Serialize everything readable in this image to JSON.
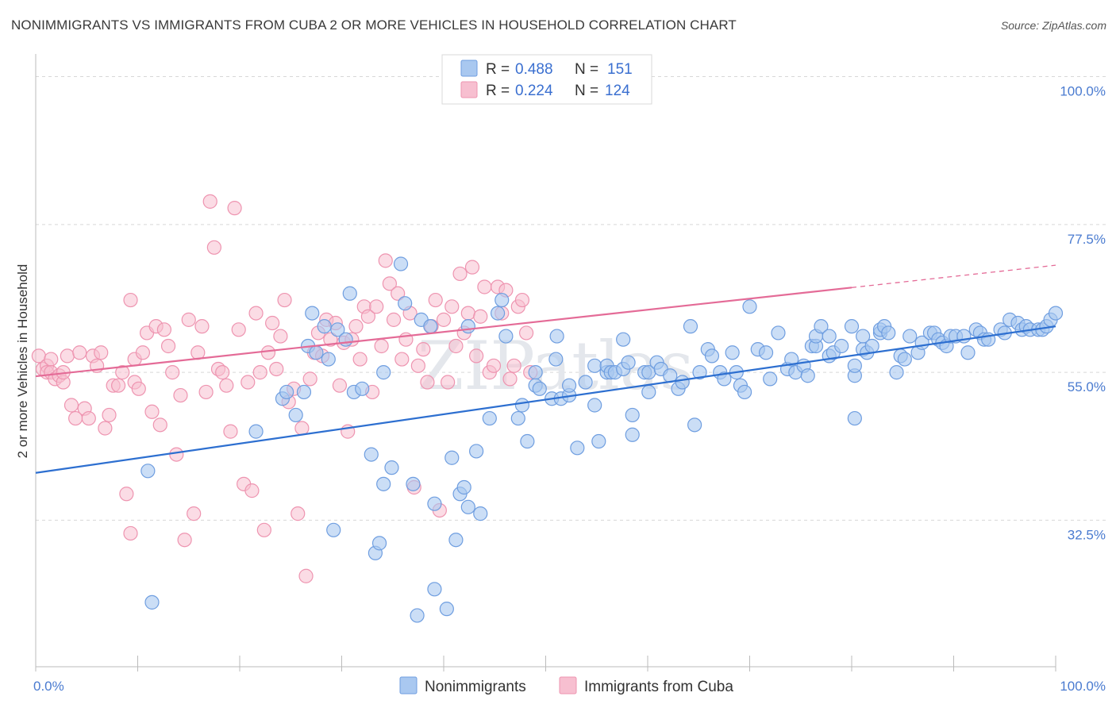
{
  "header": {
    "title": "NONIMMIGRANTS VS IMMIGRANTS FROM CUBA 2 OR MORE VEHICLES IN HOUSEHOLD CORRELATION CHART",
    "source": "Source: ZipAtlas.com"
  },
  "watermark": "ZIPatlas",
  "colors": {
    "blue_fill": "#a9c8f0",
    "blue_stroke": "#6f9ee0",
    "blue_line": "#2d6fd0",
    "pink_fill": "#f7bfd0",
    "pink_stroke": "#ee94b0",
    "pink_line": "#e46b97",
    "tick_text": "#4a7bd0",
    "grid": "#d8d8d8"
  },
  "legend": {
    "rows": [
      {
        "r_label": "R =",
        "r_value": "0.488",
        "n_label": "N =",
        "n_value": "151"
      },
      {
        "r_label": "R =",
        "r_value": "0.224",
        "n_label": "N =",
        "n_value": "124"
      }
    ]
  },
  "bottom_legend": {
    "items": [
      "Nonimmigrants",
      "Immigrants from Cuba"
    ]
  },
  "chart_data": {
    "type": "scatter",
    "title": "NONIMMIGRANTS VS IMMIGRANTS FROM CUBA 2 OR MORE VEHICLES IN HOUSEHOLD CORRELATION CHART",
    "xlabel": "",
    "ylabel": "2 or more Vehicles in Household",
    "x_ticks": [
      "0.0%",
      "100.0%"
    ],
    "y_ticks": [
      "32.5%",
      "55.0%",
      "77.5%",
      "100.0%"
    ],
    "y_tick_values": [
      32.5,
      55.0,
      77.5,
      100.0
    ],
    "xlim": [
      0,
      100
    ],
    "ylim": [
      10.2,
      102
    ],
    "grid": "horizontal dashed",
    "legend_position": "top-center",
    "series": [
      {
        "name": "Nonimmigrants",
        "r": 0.488,
        "n": 151,
        "trend": {
          "x": [
            0,
            100
          ],
          "y": [
            39.7,
            62.0
          ]
        },
        "points": [
          [
            11,
            40
          ],
          [
            11.4,
            20
          ],
          [
            21.6,
            46
          ],
          [
            24.2,
            51
          ],
          [
            24.6,
            52
          ],
          [
            25.5,
            48.5
          ],
          [
            26.3,
            52
          ],
          [
            26.7,
            59
          ],
          [
            27.1,
            64
          ],
          [
            27.5,
            58
          ],
          [
            28.3,
            62
          ],
          [
            28.7,
            57
          ],
          [
            29.2,
            31
          ],
          [
            29.6,
            61.5
          ],
          [
            30.4,
            60
          ],
          [
            30.8,
            67
          ],
          [
            31.2,
            52
          ],
          [
            32,
            52.5
          ],
          [
            32.9,
            42.5
          ],
          [
            33.3,
            27.5
          ],
          [
            33.7,
            29
          ],
          [
            34.1,
            38
          ],
          [
            34.1,
            55
          ],
          [
            34.9,
            40.5
          ],
          [
            35.8,
            71.5
          ],
          [
            36.2,
            65.5
          ],
          [
            37,
            38
          ],
          [
            37.4,
            18
          ],
          [
            37.8,
            63
          ],
          [
            38.7,
            62
          ],
          [
            39.1,
            22
          ],
          [
            39.1,
            35
          ],
          [
            40.3,
            19
          ],
          [
            40.8,
            42
          ],
          [
            41.2,
            29.5
          ],
          [
            41.6,
            36.5
          ],
          [
            42,
            37.5
          ],
          [
            42.4,
            62
          ],
          [
            42.4,
            34.5
          ],
          [
            43.2,
            43
          ],
          [
            43.6,
            33.5
          ],
          [
            44.5,
            48
          ],
          [
            45.3,
            64
          ],
          [
            45.7,
            66
          ],
          [
            46.1,
            60.5
          ],
          [
            47.3,
            48
          ],
          [
            47.7,
            50
          ],
          [
            48.2,
            44.5
          ],
          [
            49,
            55
          ],
          [
            49,
            53
          ],
          [
            49.4,
            52.5
          ],
          [
            50.6,
            51
          ],
          [
            51.1,
            60.5
          ],
          [
            51,
            57
          ],
          [
            51.5,
            51
          ],
          [
            52.3,
            51.5
          ],
          [
            52.3,
            53
          ],
          [
            53.1,
            43.5
          ],
          [
            53.9,
            53.5
          ],
          [
            54.8,
            56
          ],
          [
            54.8,
            50
          ],
          [
            55.2,
            44.5
          ],
          [
            56,
            55
          ],
          [
            56,
            56
          ],
          [
            56.4,
            55
          ],
          [
            56.8,
            55
          ],
          [
            57.6,
            60
          ],
          [
            57.6,
            55.5
          ],
          [
            58.1,
            56.5
          ],
          [
            58.5,
            45.5
          ],
          [
            58.5,
            48.5
          ],
          [
            59.7,
            55
          ],
          [
            60.1,
            55
          ],
          [
            60.1,
            52
          ],
          [
            60.9,
            56.5
          ],
          [
            61.3,
            55.5
          ],
          [
            62.2,
            54.5
          ],
          [
            63,
            52.5
          ],
          [
            63.4,
            53.5
          ],
          [
            64.2,
            62
          ],
          [
            64.6,
            47
          ],
          [
            65.1,
            55
          ],
          [
            65.9,
            58.5
          ],
          [
            66.3,
            57.5
          ],
          [
            67.1,
            55
          ],
          [
            67.5,
            54
          ],
          [
            68.3,
            58
          ],
          [
            68.7,
            55
          ],
          [
            69.1,
            53
          ],
          [
            69.5,
            52
          ],
          [
            70,
            65
          ],
          [
            70.8,
            58.5
          ],
          [
            71.6,
            58
          ],
          [
            72,
            54
          ],
          [
            72.8,
            61
          ],
          [
            73.7,
            55.5
          ],
          [
            74.1,
            57
          ],
          [
            74.5,
            55
          ],
          [
            75.3,
            56
          ],
          [
            75.7,
            54.5
          ],
          [
            76.1,
            59
          ],
          [
            76.5,
            59
          ],
          [
            76.5,
            60.5
          ],
          [
            77,
            62
          ],
          [
            77.8,
            57.5
          ],
          [
            77.8,
            60.5
          ],
          [
            78.2,
            58
          ],
          [
            79,
            59
          ],
          [
            80,
            62
          ],
          [
            80.3,
            54.5
          ],
          [
            80.3,
            56
          ],
          [
            80.3,
            48
          ],
          [
            81.1,
            58.5
          ],
          [
            81.1,
            60.5
          ],
          [
            81.5,
            58
          ],
          [
            82,
            59
          ],
          [
            82.8,
            61
          ],
          [
            82.8,
            61.5
          ],
          [
            83.2,
            62
          ],
          [
            83.6,
            61
          ],
          [
            84.4,
            55
          ],
          [
            84.8,
            57.5
          ],
          [
            85.2,
            57
          ],
          [
            85.7,
            60.5
          ],
          [
            86.5,
            58
          ],
          [
            86.9,
            59.5
          ],
          [
            87.7,
            61
          ],
          [
            88.1,
            61
          ],
          [
            88.5,
            60
          ],
          [
            88.9,
            59.5
          ],
          [
            89.3,
            59
          ],
          [
            89.7,
            60.5
          ],
          [
            90.2,
            60.5
          ],
          [
            91,
            60.5
          ],
          [
            91.4,
            58
          ],
          [
            92.2,
            61.5
          ],
          [
            92.6,
            61
          ],
          [
            93,
            60
          ],
          [
            93.4,
            60
          ],
          [
            94.6,
            61.5
          ],
          [
            95,
            61
          ],
          [
            95.5,
            63
          ],
          [
            96.3,
            62.5
          ],
          [
            96.7,
            61.5
          ],
          [
            97.1,
            62
          ],
          [
            97.5,
            61.5
          ],
          [
            98.3,
            61.5
          ],
          [
            98.7,
            61.5
          ],
          [
            99.1,
            62
          ],
          [
            99.5,
            63
          ],
          [
            100,
            64
          ]
        ]
      },
      {
        "name": "Immigrants from Cuba",
        "r": 0.224,
        "n": 124,
        "trend": {
          "x": [
            0,
            80
          ],
          "y": [
            54.4,
            67.9
          ]
        },
        "trend_dashed": {
          "x": [
            80,
            100
          ],
          "y": [
            67.9,
            71.3
          ]
        },
        "points": [
          [
            0.3,
            57.5
          ],
          [
            0.7,
            55.5
          ],
          [
            1.1,
            56
          ],
          [
            1.1,
            55
          ],
          [
            1.5,
            57
          ],
          [
            1.5,
            55
          ],
          [
            1.9,
            54
          ],
          [
            2.3,
            54.5
          ],
          [
            2.7,
            53.5
          ],
          [
            2.7,
            55
          ],
          [
            3.1,
            57.5
          ],
          [
            3.5,
            50
          ],
          [
            3.9,
            48
          ],
          [
            4.3,
            58
          ],
          [
            4.8,
            49.5
          ],
          [
            5.2,
            48
          ],
          [
            5.6,
            57.5
          ],
          [
            6,
            56
          ],
          [
            6.4,
            58
          ],
          [
            6.8,
            46.5
          ],
          [
            7.2,
            48.5
          ],
          [
            7.6,
            53
          ],
          [
            8.1,
            53
          ],
          [
            8.5,
            55
          ],
          [
            8.9,
            36.5
          ],
          [
            9.3,
            30.5
          ],
          [
            9.3,
            66
          ],
          [
            9.7,
            57
          ],
          [
            9.7,
            53.5
          ],
          [
            10.1,
            52.5
          ],
          [
            10.5,
            58
          ],
          [
            10.9,
            61
          ],
          [
            11.4,
            49
          ],
          [
            11.8,
            62
          ],
          [
            12.2,
            47
          ],
          [
            12.6,
            61.5
          ],
          [
            13,
            59
          ],
          [
            13.4,
            55
          ],
          [
            13.8,
            42.5
          ],
          [
            14.2,
            51.5
          ],
          [
            14.6,
            29.5
          ],
          [
            15,
            63
          ],
          [
            15.5,
            33.5
          ],
          [
            15.9,
            58
          ],
          [
            16.3,
            62
          ],
          [
            16.7,
            52
          ],
          [
            17.1,
            81
          ],
          [
            17.5,
            74
          ],
          [
            17.9,
            55.5
          ],
          [
            18.3,
            55
          ],
          [
            18.7,
            53
          ],
          [
            19.1,
            46
          ],
          [
            19.5,
            80
          ],
          [
            19.9,
            61.5
          ],
          [
            20.4,
            38
          ],
          [
            20.8,
            53.5
          ],
          [
            21.2,
            37
          ],
          [
            21.6,
            64
          ],
          [
            22,
            55
          ],
          [
            22.4,
            31
          ],
          [
            22.8,
            58
          ],
          [
            23.2,
            62.5
          ],
          [
            23.6,
            55.5
          ],
          [
            24,
            60.5
          ],
          [
            24.4,
            66
          ],
          [
            24.8,
            50.5
          ],
          [
            25.3,
            52.5
          ],
          [
            25.7,
            33.5
          ],
          [
            26.1,
            46.5
          ],
          [
            26.5,
            24
          ],
          [
            26.9,
            54
          ],
          [
            27.3,
            58
          ],
          [
            27.7,
            61
          ],
          [
            28.1,
            57.5
          ],
          [
            28.5,
            63
          ],
          [
            28.9,
            60
          ],
          [
            29.4,
            62.5
          ],
          [
            29.8,
            53
          ],
          [
            30.2,
            59.5
          ],
          [
            30.6,
            46
          ],
          [
            31,
            60
          ],
          [
            31.4,
            62
          ],
          [
            31.8,
            57
          ],
          [
            32.2,
            65
          ],
          [
            32.6,
            63.5
          ],
          [
            33,
            52
          ],
          [
            33.4,
            65
          ],
          [
            33.9,
            59
          ],
          [
            34.3,
            72
          ],
          [
            34.7,
            68.5
          ],
          [
            35.1,
            63
          ],
          [
            35.5,
            67
          ],
          [
            35.9,
            57
          ],
          [
            36.3,
            60
          ],
          [
            36.7,
            64
          ],
          [
            37.1,
            37.5
          ],
          [
            37.5,
            56
          ],
          [
            38,
            58.5
          ],
          [
            38.4,
            53.5
          ],
          [
            38.8,
            62
          ],
          [
            39.2,
            66
          ],
          [
            39.6,
            34
          ],
          [
            40,
            63
          ],
          [
            40.4,
            53.5
          ],
          [
            40.8,
            65
          ],
          [
            41.2,
            59
          ],
          [
            41.6,
            70
          ],
          [
            42,
            61
          ],
          [
            42.4,
            64
          ],
          [
            42.8,
            71
          ],
          [
            43.2,
            57.5
          ],
          [
            43.6,
            63.5
          ],
          [
            44,
            68
          ],
          [
            44.5,
            55
          ],
          [
            44.9,
            56
          ],
          [
            45.3,
            68
          ],
          [
            45.7,
            64
          ],
          [
            46.1,
            67.5
          ],
          [
            46.5,
            54
          ],
          [
            46.9,
            56
          ],
          [
            47.3,
            65
          ],
          [
            47.7,
            66
          ],
          [
            48.1,
            61
          ],
          [
            48.5,
            55
          ]
        ]
      }
    ]
  }
}
